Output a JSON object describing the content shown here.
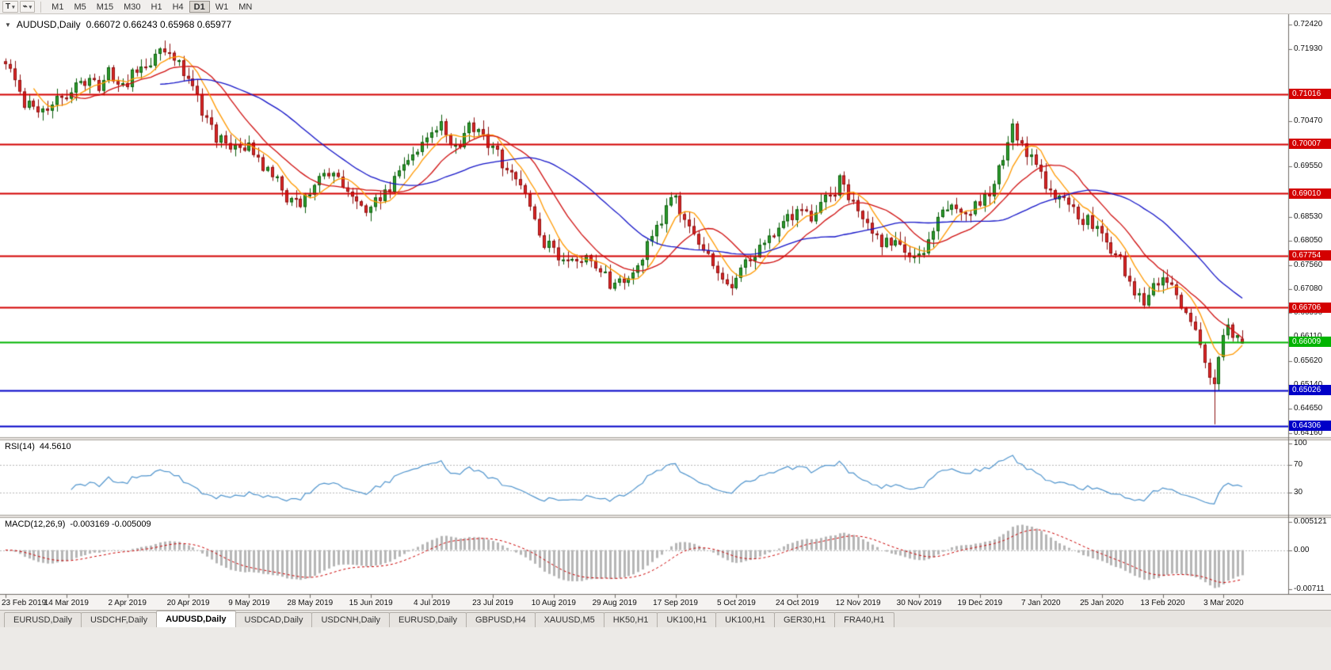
{
  "icons": {
    "caret_down": "▾",
    "collapse": "▼",
    "zigzag": "⌁"
  },
  "toolbar": {
    "t_button_label": "T",
    "timeframes": [
      "M1",
      "M5",
      "M15",
      "M30",
      "H1",
      "H4",
      "D1",
      "W1",
      "MN"
    ],
    "active_timeframe": "D1"
  },
  "chart": {
    "title": "AUDUSD,Daily",
    "ohlc_text": "0.66072 0.66243 0.65968 0.65977"
  },
  "price_axis": {
    "ticks": [
      "0.72420",
      "0.71930",
      "0.70470",
      "0.69550",
      "0.68530",
      "0.68050",
      "0.67560",
      "0.67080",
      "0.66590",
      "0.66110",
      "0.65620",
      "0.65140",
      "0.64650",
      "0.64160"
    ]
  },
  "rsi_panel": {
    "label": "RSI(14)",
    "value": "44.5610",
    "period": 14,
    "line_color": "#4f94cd",
    "levels": [
      70,
      30
    ],
    "axis_labels": [
      {
        "text": "100",
        "value": 100
      },
      {
        "text": "70",
        "value": 70
      },
      {
        "text": "30",
        "value": 30
      }
    ]
  },
  "macd_panel": {
    "label": "MACD(12,26,9)",
    "values_text": "-0.003169 -0.005009",
    "fast": 12,
    "slow": 26,
    "signal": 9,
    "main_value": -0.003169,
    "signal_value": -0.005009,
    "histogram_color": "#b6b6b6",
    "signal_color": "#cc0000",
    "range": [
      -0.00711,
      0.005121
    ],
    "axis_labels": [
      {
        "text": "0.005121",
        "value": 0.005121
      },
      {
        "text": "0.00",
        "value": 0
      },
      {
        "text": "-0.00711",
        "value": -0.00711
      }
    ]
  },
  "tabs": [
    {
      "label": "EURUSD,Daily",
      "active": false
    },
    {
      "label": "USDCHF,Daily",
      "active": false
    },
    {
      "label": "AUDUSD,Daily",
      "active": true
    },
    {
      "label": "USDCAD,Daily",
      "active": false
    },
    {
      "label": "USDCNH,Daily",
      "active": false
    },
    {
      "label": "EURUSD,Daily",
      "active": false
    },
    {
      "label": "GBPUSD,H4",
      "active": false
    },
    {
      "label": "XAUUSD,M5",
      "active": false
    },
    {
      "label": "HK50,H1",
      "active": false
    },
    {
      "label": "UK100,H1",
      "active": false
    },
    {
      "label": "UK100,H1",
      "active": false
    },
    {
      "label": "GER30,H1",
      "active": false
    },
    {
      "label": "FRA40,H1",
      "active": false
    }
  ],
  "chart_data": {
    "type": "candlestick",
    "symbol": "AUDUSD",
    "period": "Daily",
    "bars_total": 265,
    "seed": 20200305,
    "y_range": [
      0.64097,
      0.726
    ],
    "last_ohlc": {
      "open": 0.66072,
      "high": 0.66243,
      "low": 0.65968,
      "close": 0.65977
    },
    "spike_low": {
      "bar": 258,
      "price": 0.6434
    },
    "candle_colors": {
      "up_fill": "#2f9e2f",
      "up_border": "#0b5d0b",
      "down_fill": "#dc2828",
      "down_border": "#8c0f0f"
    },
    "moving_averages": [
      {
        "period": 7,
        "color": "#ff9900"
      },
      {
        "period": 15,
        "color": "#d01010"
      },
      {
        "period": 34,
        "color": "#1414c8"
      }
    ],
    "hlines": [
      {
        "price": 0.71016,
        "label": "0.71016",
        "color": "#d40000"
      },
      {
        "price": 0.70007,
        "label": "0.70007",
        "color": "#d40000"
      },
      {
        "price": 0.6901,
        "label": "0.69010",
        "color": "#d40000"
      },
      {
        "price": 0.67754,
        "label": "0.67754",
        "color": "#d40000"
      },
      {
        "price": 0.66706,
        "label": "0.66706",
        "color": "#d40000"
      },
      {
        "price": 0.66009,
        "label": "0.66009",
        "color": "#00b400"
      },
      {
        "price": 0.65026,
        "label": "0.65026",
        "color": "#0000c8"
      },
      {
        "price": 0.64306,
        "label": "0.64306",
        "color": "#0000c8"
      }
    ],
    "label_every_bars": 13,
    "date_labels": [
      "23 Feb 2019",
      "14 Mar 2019",
      "2 Apr 2019",
      "20 Apr 2019",
      "9 May 2019",
      "28 May 2019",
      "15 Jun 2019",
      "4 Jul 2019",
      "23 Jul 2019",
      "10 Aug 2019",
      "29 Aug 2019",
      "17 Sep 2019",
      "5 Oct 2019",
      "24 Oct 2019",
      "12 Nov 2019",
      "30 Nov 2019",
      "19 Dec 2019",
      "7 Jan 2020",
      "25 Jan 2020",
      "13 Feb 2020",
      "3 Mar 2020"
    ],
    "price_anchors": [
      [
        0,
        0.7168
      ],
      [
        2,
        0.713
      ],
      [
        4,
        0.7085
      ],
      [
        7,
        0.7068
      ],
      [
        10,
        0.708
      ],
      [
        13,
        0.7095
      ],
      [
        16,
        0.7125
      ],
      [
        19,
        0.7118
      ],
      [
        22,
        0.714
      ],
      [
        24,
        0.7125
      ],
      [
        27,
        0.7138
      ],
      [
        30,
        0.7158
      ],
      [
        33,
        0.7185
      ],
      [
        36,
        0.7172
      ],
      [
        38,
        0.7145
      ],
      [
        40,
        0.7118
      ],
      [
        42,
        0.706
      ],
      [
        45,
        0.7015
      ],
      [
        48,
        0.6998
      ],
      [
        52,
        0.6992
      ],
      [
        55,
        0.6962
      ],
      [
        58,
        0.6925
      ],
      [
        61,
        0.6885
      ],
      [
        63,
        0.6872
      ],
      [
        66,
        0.6918
      ],
      [
        69,
        0.6938
      ],
      [
        72,
        0.6912
      ],
      [
        75,
        0.6888
      ],
      [
        78,
        0.6872
      ],
      [
        81,
        0.6905
      ],
      [
        84,
        0.6948
      ],
      [
        87,
        0.6985
      ],
      [
        90,
        0.7022
      ],
      [
        93,
        0.7038
      ],
      [
        96,
        0.6988
      ],
      [
        99,
        0.7032
      ],
      [
        102,
        0.7015
      ],
      [
        105,
        0.6982
      ],
      [
        108,
        0.6942
      ],
      [
        111,
        0.6902
      ],
      [
        114,
        0.6818
      ],
      [
        117,
        0.6782
      ],
      [
        120,
        0.6762
      ],
      [
        123,
        0.6778
      ],
      [
        126,
        0.6752
      ],
      [
        129,
        0.6722
      ],
      [
        132,
        0.6718
      ],
      [
        135,
        0.6758
      ],
      [
        138,
        0.6815
      ],
      [
        141,
        0.6868
      ],
      [
        143,
        0.6888
      ],
      [
        146,
        0.6822
      ],
      [
        149,
        0.6788
      ],
      [
        152,
        0.6742
      ],
      [
        155,
        0.6708
      ],
      [
        158,
        0.6762
      ],
      [
        161,
        0.6788
      ],
      [
        164,
        0.6812
      ],
      [
        167,
        0.6848
      ],
      [
        170,
        0.6868
      ],
      [
        173,
        0.6852
      ],
      [
        176,
        0.6898
      ],
      [
        178,
        0.6922
      ],
      [
        181,
        0.6888
      ],
      [
        184,
        0.6842
      ],
      [
        187,
        0.6802
      ],
      [
        190,
        0.6812
      ],
      [
        193,
        0.6772
      ],
      [
        196,
        0.6792
      ],
      [
        199,
        0.6848
      ],
      [
        202,
        0.6882
      ],
      [
        205,
        0.6858
      ],
      [
        208,
        0.6882
      ],
      [
        211,
        0.6922
      ],
      [
        214,
        0.6998
      ],
      [
        215,
        0.7035
      ],
      [
        217,
        0.7002
      ],
      [
        220,
        0.6948
      ],
      [
        223,
        0.6912
      ],
      [
        226,
        0.6888
      ],
      [
        229,
        0.6862
      ],
      [
        232,
        0.6832
      ],
      [
        235,
        0.6802
      ],
      [
        238,
        0.6762
      ],
      [
        241,
        0.6702
      ],
      [
        243,
        0.6682
      ],
      [
        245,
        0.6718
      ],
      [
        248,
        0.6728
      ],
      [
        250,
        0.6692
      ],
      [
        252,
        0.6655
      ],
      [
        254,
        0.6618
      ],
      [
        256,
        0.6562
      ],
      [
        257,
        0.6542
      ],
      [
        258,
        0.6525
      ],
      [
        259,
        0.6568
      ],
      [
        260,
        0.6612
      ],
      [
        261,
        0.6642
      ],
      [
        262,
        0.6605
      ],
      [
        263,
        0.6618
      ],
      [
        264,
        0.65977
      ]
    ]
  }
}
